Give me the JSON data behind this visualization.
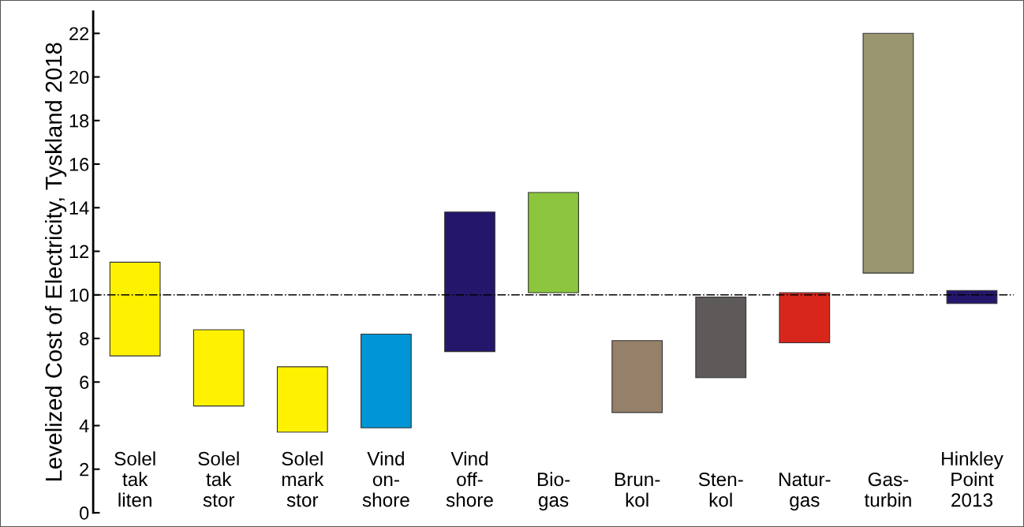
{
  "chart_data": {
    "type": "bar",
    "ylabel": "Levelized Cost of Electricity, Tyskland 2018",
    "categories": [
      "Solel\ntak\nliten",
      "Solel\ntak\nstor",
      "Solel\nmark\nstor",
      "Vind\non-\nshore",
      "Vind\noff-\nshore",
      "Bio-\ngas",
      "Brun-\nkol",
      "Sten-\nkol",
      "Natur-\ngas",
      "Gas-\nturbin",
      "Hinkley\nPoint\n2013"
    ],
    "base": [
      7.2,
      4.9,
      3.7,
      3.9,
      7.4,
      10.1,
      4.6,
      6.2,
      7.8,
      11.0,
      9.6
    ],
    "values": [
      4.3,
      3.5,
      3.0,
      4.3,
      6.4,
      4.6,
      3.3,
      3.7,
      2.3,
      11.0,
      0.6
    ],
    "colors": [
      "#fff200",
      "#fff200",
      "#fff200",
      "#0096d6",
      "#24176b",
      "#8cc63f",
      "#95806a",
      "#5e5a59",
      "#d9261c",
      "#999670",
      "#24176b"
    ],
    "ylim": [
      0,
      23
    ],
    "yticks": [
      0,
      2,
      4,
      6,
      8,
      10,
      12,
      14,
      16,
      18,
      20,
      22
    ],
    "ref_lines": [
      {
        "axis": "y",
        "value": 10,
        "label": null,
        "color": "#000000",
        "line_style": "dashdot"
      }
    ],
    "grid": false,
    "legend": false
  }
}
